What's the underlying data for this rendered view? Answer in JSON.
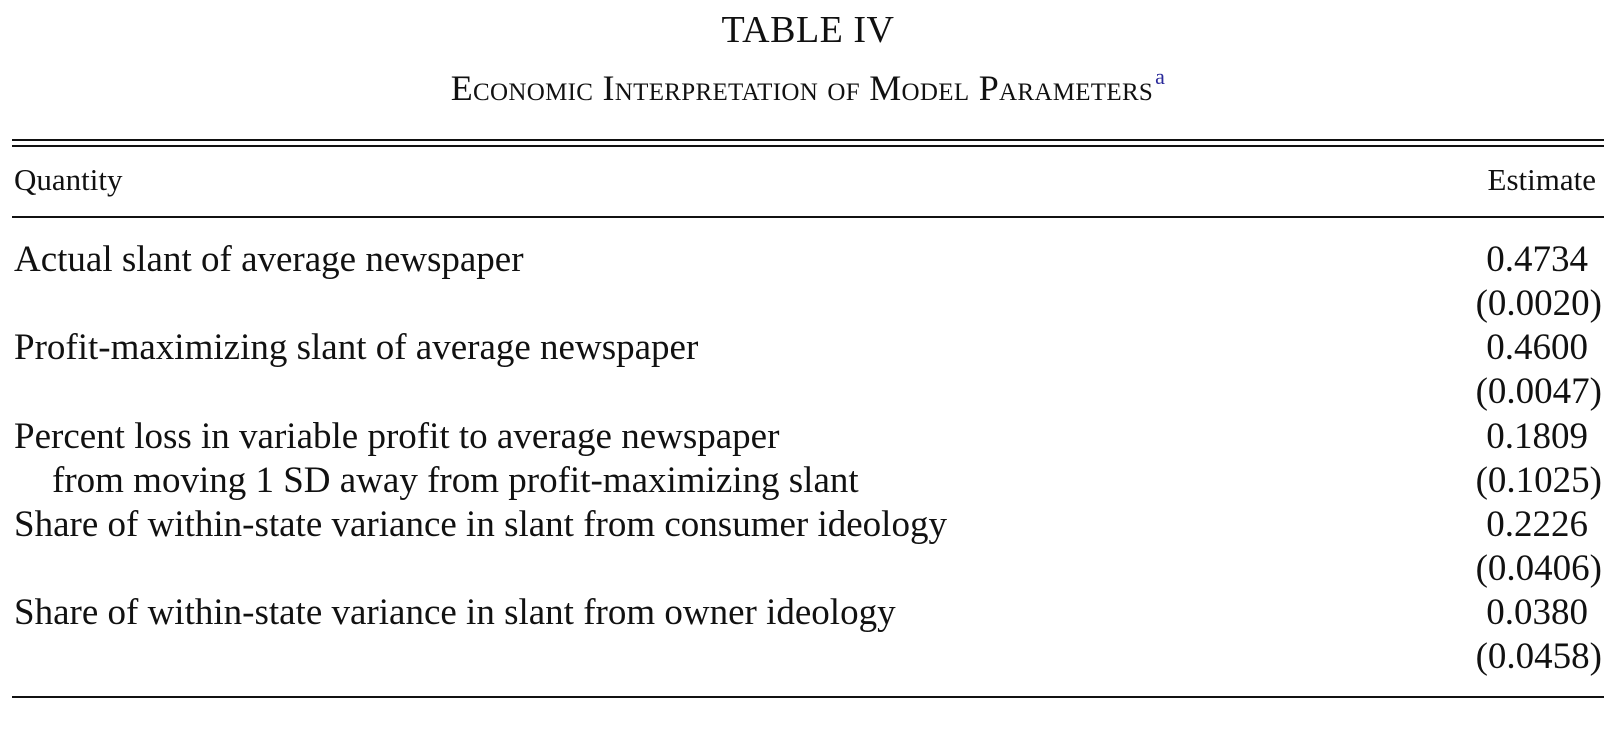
{
  "table": {
    "title": "TABLE IV",
    "subtitle": "Economic Interpretation of Model Parameters",
    "footnote_marker": "a",
    "header": {
      "quantity": "Quantity",
      "estimate": "Estimate"
    },
    "rows": [
      {
        "label": "Actual slant of average newspaper",
        "estimate": "0.4734",
        "se": "(0.0020)"
      },
      {
        "label": "Profit-maximizing slant of average newspaper",
        "estimate": "0.4600",
        "se": "(0.0047)"
      },
      {
        "label": "Percent loss in variable profit to average newspaper",
        "label_continued": "from moving 1 SD away from profit-maximizing slant",
        "estimate": "0.1809",
        "se": "(0.1025)"
      },
      {
        "label": "Share of within-state variance in slant from consumer ideology",
        "estimate": "0.2226",
        "se": "(0.0406)"
      },
      {
        "label": "Share of within-state variance in slant from owner ideology",
        "estimate": "0.0380",
        "se": "(0.0458)"
      }
    ]
  }
}
